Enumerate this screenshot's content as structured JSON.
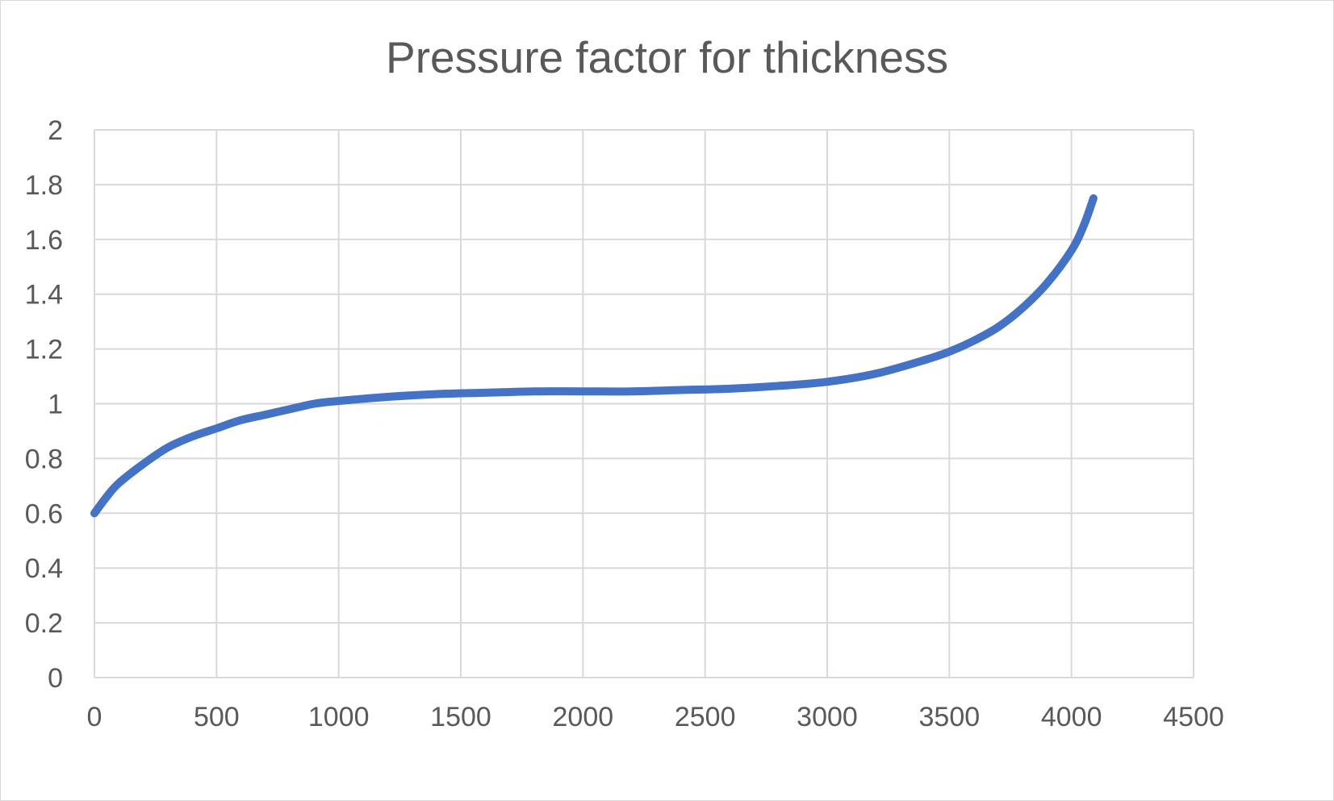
{
  "chart_data": {
    "type": "line",
    "title": "Pressure factor for thickness",
    "xlabel": "",
    "ylabel": "",
    "xlim": [
      0,
      4500
    ],
    "ylim": [
      0,
      2
    ],
    "xticks": [
      0,
      500,
      1000,
      1500,
      2000,
      2500,
      3000,
      3500,
      4000,
      4500
    ],
    "yticks": [
      0,
      0.2,
      0.4,
      0.6,
      0.8,
      1,
      1.2,
      1.4,
      1.6,
      1.8,
      2
    ],
    "grid": true,
    "legend": "none",
    "series": [
      {
        "color": "#4472c4",
        "x": [
          0,
          50,
          100,
          200,
          300,
          400,
          500,
          600,
          700,
          800,
          900,
          1000,
          1200,
          1400,
          1600,
          1800,
          2000,
          2200,
          2400,
          2600,
          2800,
          3000,
          3200,
          3400,
          3500,
          3600,
          3700,
          3800,
          3900,
          4000,
          4050,
          4090
        ],
        "y": [
          0.6,
          0.66,
          0.71,
          0.78,
          0.84,
          0.88,
          0.91,
          0.94,
          0.96,
          0.98,
          1.0,
          1.01,
          1.025,
          1.035,
          1.04,
          1.045,
          1.045,
          1.045,
          1.05,
          1.055,
          1.065,
          1.08,
          1.11,
          1.16,
          1.19,
          1.23,
          1.28,
          1.35,
          1.44,
          1.56,
          1.65,
          1.75
        ]
      }
    ]
  }
}
